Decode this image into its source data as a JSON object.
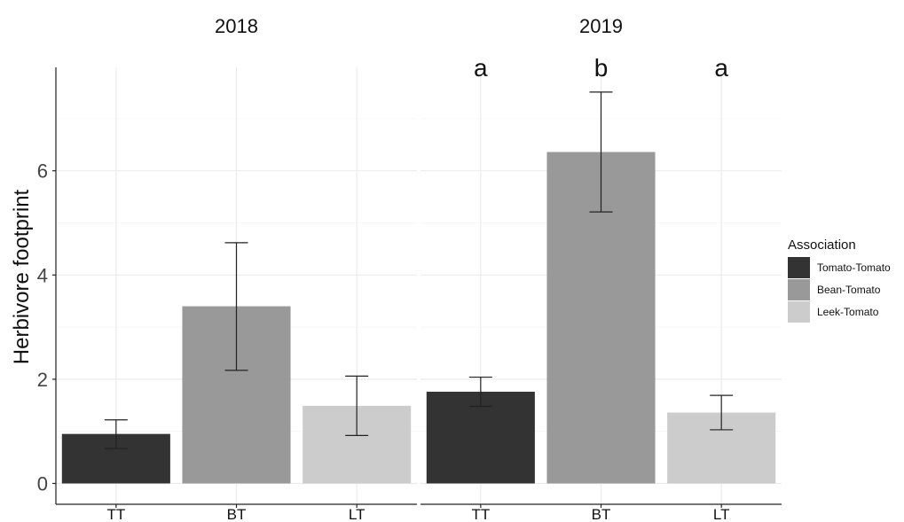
{
  "chart_data": {
    "type": "bar",
    "ylabel": "Herbivore footprint",
    "xlabel": "",
    "ylim": [
      0,
      7.8
    ],
    "yticks": [
      0,
      2,
      4,
      6
    ],
    "grid": true,
    "legend_placement": "right",
    "legend": {
      "title": "Association",
      "entries": [
        {
          "name": "Tomato-Tomato",
          "color": "#333333"
        },
        {
          "name": "Bean-Tomato",
          "color": "#999999"
        },
        {
          "name": "Leek-Tomato",
          "color": "#cccccc"
        }
      ]
    },
    "categories": [
      "TT",
      "BT",
      "LT"
    ],
    "facets": [
      {
        "title": "2018",
        "bars": [
          {
            "category": "TT",
            "value": 0.95,
            "err_low": 0.67,
            "err_high": 1.22,
            "sig": ""
          },
          {
            "category": "BT",
            "value": 3.4,
            "err_low": 2.17,
            "err_high": 4.62,
            "sig": ""
          },
          {
            "category": "LT",
            "value": 1.49,
            "err_low": 0.92,
            "err_high": 2.06,
            "sig": ""
          }
        ]
      },
      {
        "title": "2019",
        "bars": [
          {
            "category": "TT",
            "value": 1.76,
            "err_low": 1.48,
            "err_high": 2.04,
            "sig": "a"
          },
          {
            "category": "BT",
            "value": 6.36,
            "err_low": 5.21,
            "err_high": 7.51,
            "sig": "b"
          },
          {
            "category": "LT",
            "value": 1.36,
            "err_low": 1.03,
            "err_high": 1.69,
            "sig": "a"
          }
        ]
      }
    ]
  }
}
